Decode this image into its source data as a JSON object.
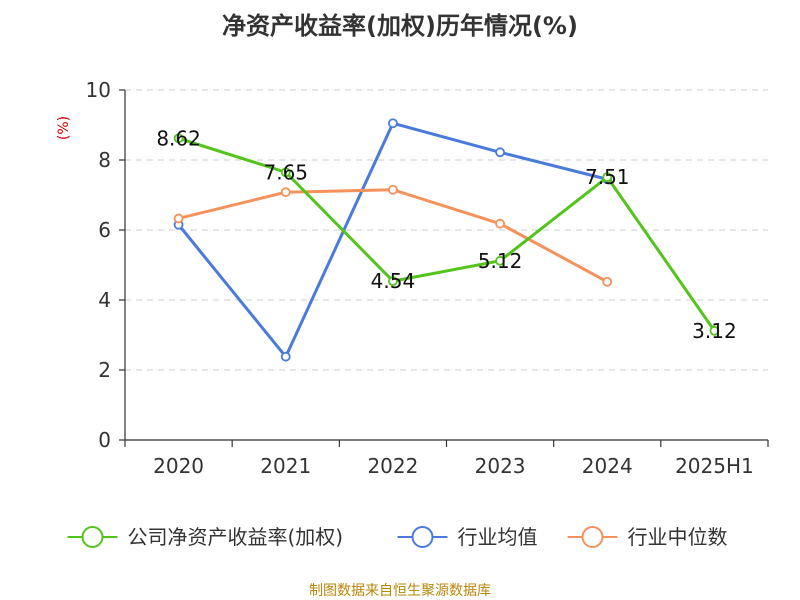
{
  "chart_data": {
    "type": "line",
    "title": "净资产收益率(加权)历年情况(%)",
    "ylabel": "(%)",
    "categories": [
      "2020",
      "2021",
      "2022",
      "2023",
      "2024",
      "2025H1"
    ],
    "ylim": [
      0,
      10
    ],
    "yticks": [
      0,
      2,
      4,
      6,
      8,
      10
    ],
    "grid": true,
    "legend_position": "bottom",
    "series": [
      {
        "name": "公司净资产收益率(加权)",
        "color": "#52c41a",
        "values": [
          8.62,
          7.65,
          4.54,
          5.12,
          7.51,
          3.12
        ],
        "labels": [
          "8.62",
          "7.65",
          "4.54",
          "5.12",
          "7.51",
          "3.12"
        ]
      },
      {
        "name": "行业均值",
        "color": "#4a7bdc",
        "values": [
          6.15,
          2.38,
          9.05,
          8.22,
          7.45,
          null
        ]
      },
      {
        "name": "行业中位数",
        "color": "#f5915a",
        "values": [
          6.33,
          7.08,
          7.15,
          6.18,
          4.52,
          null
        ]
      }
    ]
  },
  "footer": {
    "source": "制图数据来自恒生聚源数据库"
  }
}
